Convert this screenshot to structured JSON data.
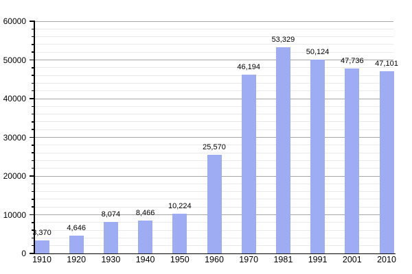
{
  "chart_data": {
    "type": "bar",
    "title": "",
    "xlabel": "",
    "ylabel": "",
    "categories": [
      "1910",
      "1920",
      "1930",
      "1940",
      "1950",
      "1960",
      "1970",
      "1981",
      "1991",
      "2001",
      "2010"
    ],
    "values": [
      3370,
      4646,
      8074,
      8466,
      10224,
      25570,
      46194,
      53329,
      50124,
      47736,
      47101
    ],
    "value_labels": [
      "3,370",
      "4,646",
      "8,074",
      "8,466",
      "10,224",
      "25,570",
      "46,194",
      "53,329",
      "50,124",
      "47,736",
      "47,101"
    ],
    "ylim": [
      0,
      60000
    ],
    "ytick_interval": 10000,
    "yminor_interval": 2000,
    "ytick_labels": [
      "0",
      "10000",
      "20000",
      "30000",
      "40000",
      "50000",
      "60000"
    ],
    "grid": "on",
    "legend": "none",
    "colors": {
      "bar": "#9eacf3",
      "major_grid": "#a6a6a6",
      "minor_grid": "#eaeaea",
      "axis": "#000000",
      "text": "#000000",
      "background": "#ffffff"
    }
  }
}
